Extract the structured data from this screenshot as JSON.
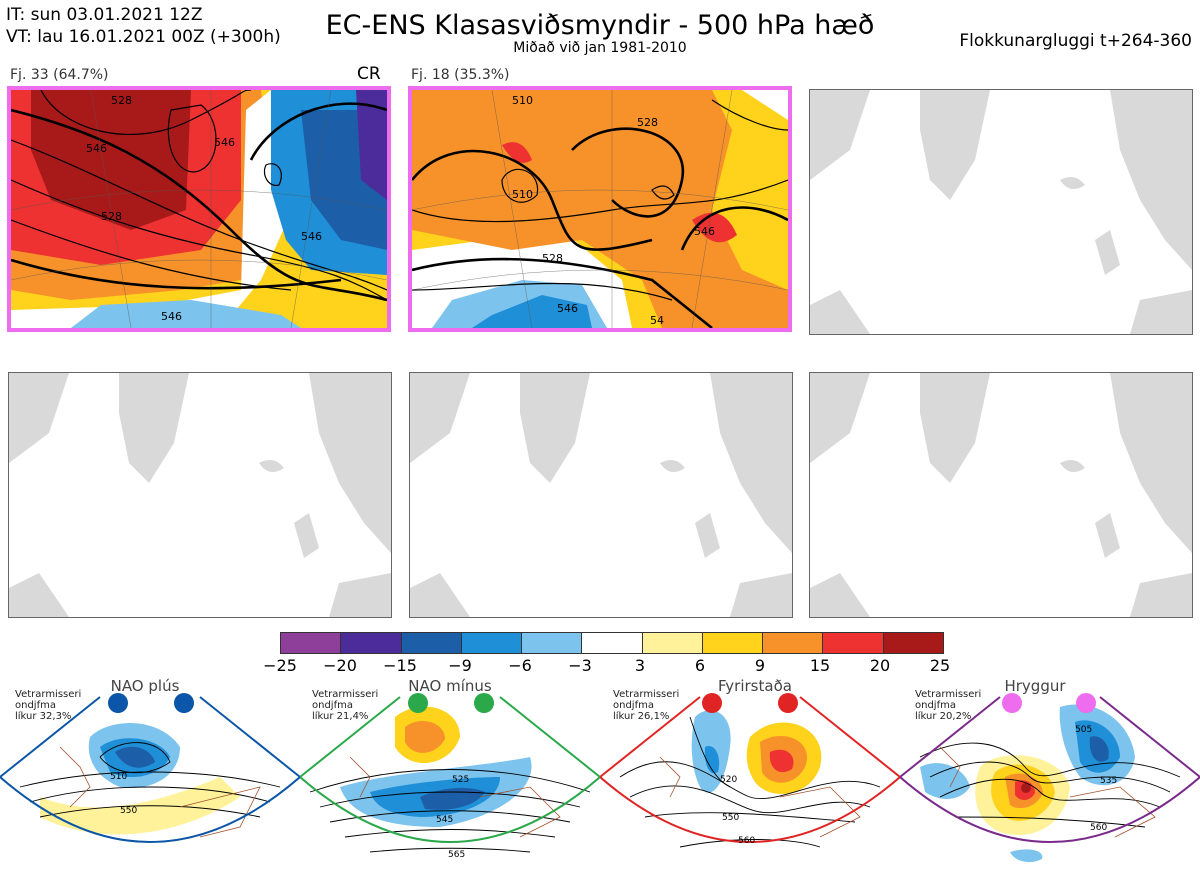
{
  "header": {
    "it_line": "IT: sun 03.01.2021 12Z",
    "vt_line": "VT: lau 16.01.2021 00Z  (+300h)",
    "title": "EC-ENS Klasasviðsmyndir - 500 hPa hæð",
    "subtitle": "Miðað við jan 1981-2010",
    "window": "Flokkunargluggi t+264-360"
  },
  "panels": {
    "p1": {
      "label": "Fj. 33 (64.7%)",
      "tag": "CR",
      "contours": [
        "528",
        "546",
        "546",
        "528",
        "546",
        "546"
      ]
    },
    "p2": {
      "label": "Fj. 18 (35.3%)",
      "contours": [
        "510",
        "528",
        "510",
        "528",
        "546",
        "546",
        "54"
      ]
    }
  },
  "colorbar": {
    "colors": [
      "#8e3f99",
      "#4b2c9a",
      "#1d5ea8",
      "#1f8fd8",
      "#7cc3ee",
      "#ffffff",
      "#fff29a",
      "#ffd21c",
      "#f7922a",
      "#ee3232",
      "#a81a1a"
    ],
    "ticks": [
      "−25",
      "−20",
      "−15",
      "−9",
      "−6",
      "−3",
      "3",
      "6",
      "9",
      "15",
      "20",
      "25"
    ]
  },
  "regimes": [
    {
      "title": "NAO plús",
      "note": [
        "Vetrarmisseri",
        "ondjfma",
        "líkur 32,3%"
      ],
      "color": "#0b56a8",
      "dot_color": "#0b56a8",
      "labels": [
        "510",
        "550"
      ]
    },
    {
      "title": "NAO mínus",
      "note": [
        "Vetrarmisseri",
        "ondjfma",
        "líkur 21,4%"
      ],
      "color": "#2aa84a",
      "dot_color": "#2aa84a",
      "labels": [
        "525",
        "545",
        "565"
      ]
    },
    {
      "title": "Fyrirstaða",
      "note": [
        "Vetrarmisseri",
        "ondjfma",
        "líkur 26,1%"
      ],
      "color": "#e02424",
      "dot_color": "#e02424",
      "labels": [
        "520",
        "550",
        "560"
      ]
    },
    {
      "title": "Hryggur",
      "note": [
        "Vetrarmisseri",
        "ondjfma",
        "líkur 20,2%"
      ],
      "color": "#7a2a8a",
      "dot_color": "#ee6cee",
      "labels": [
        "505",
        "535",
        "560"
      ]
    }
  ]
}
